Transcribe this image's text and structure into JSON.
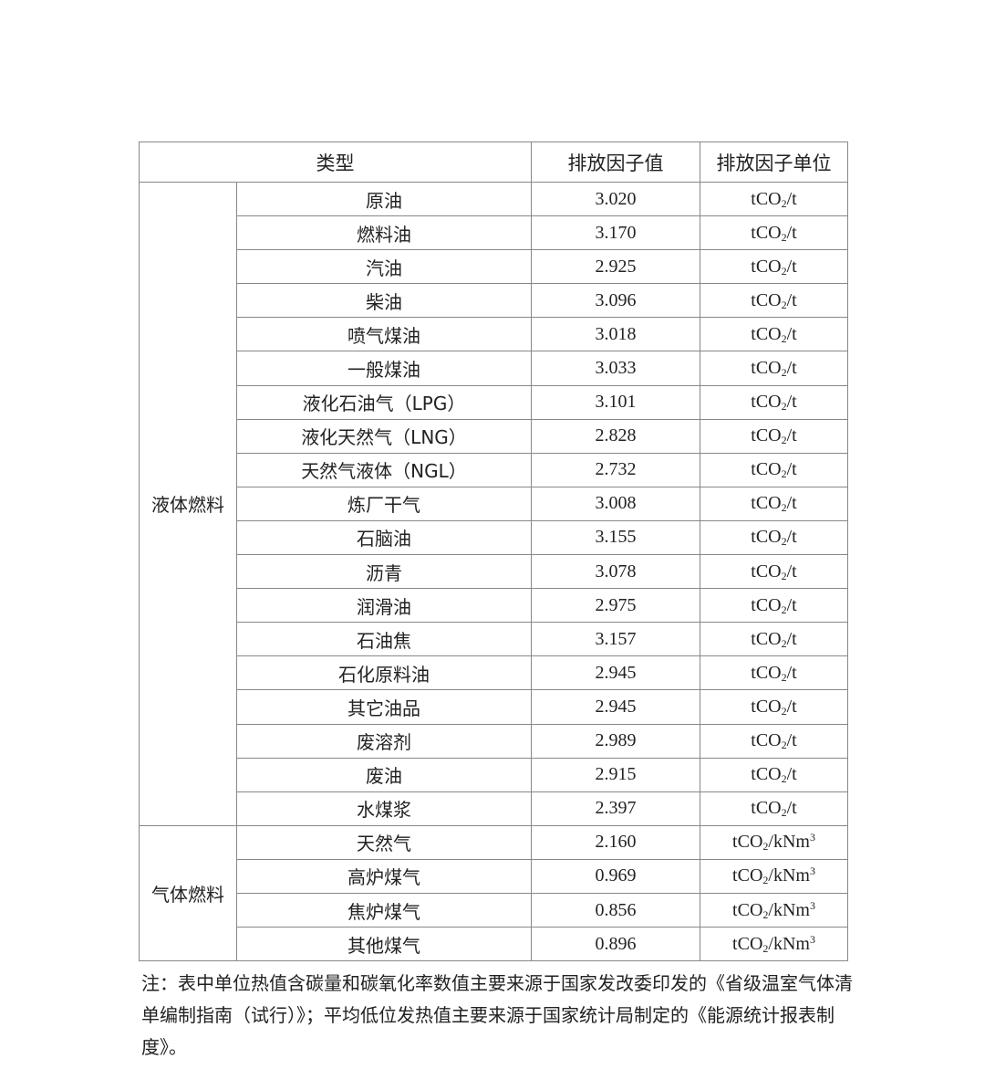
{
  "header": {
    "type": "类型",
    "value": "排放因子值",
    "unit": "排放因子单位"
  },
  "groups": [
    {
      "category": "液体燃料",
      "rows": [
        {
          "name": "原油",
          "value": "3.020",
          "unit": {
            "base": "tCO",
            "sub": "2",
            "rest": "/t",
            "sup": ""
          }
        },
        {
          "name": "燃料油",
          "value": "3.170",
          "unit": {
            "base": "tCO",
            "sub": "2",
            "rest": "/t",
            "sup": ""
          }
        },
        {
          "name": "汽油",
          "value": "2.925",
          "unit": {
            "base": "tCO",
            "sub": "2",
            "rest": "/t",
            "sup": ""
          }
        },
        {
          "name": "柴油",
          "value": "3.096",
          "unit": {
            "base": "tCO",
            "sub": "2",
            "rest": "/t",
            "sup": ""
          }
        },
        {
          "name": "喷气煤油",
          "value": "3.018",
          "unit": {
            "base": "tCO",
            "sub": "2",
            "rest": "/t",
            "sup": ""
          }
        },
        {
          "name": "一般煤油",
          "value": "3.033",
          "unit": {
            "base": "tCO",
            "sub": "2",
            "rest": "/t",
            "sup": ""
          }
        },
        {
          "name": "液化石油气（LPG）",
          "value": "3.101",
          "unit": {
            "base": "tCO",
            "sub": "2",
            "rest": "/t",
            "sup": ""
          }
        },
        {
          "name": "液化天然气（LNG）",
          "value": "2.828",
          "unit": {
            "base": "tCO",
            "sub": "2",
            "rest": "/t",
            "sup": ""
          }
        },
        {
          "name": "天然气液体（NGL）",
          "value": "2.732",
          "unit": {
            "base": "tCO",
            "sub": "2",
            "rest": "/t",
            "sup": ""
          }
        },
        {
          "name": "炼厂干气",
          "value": "3.008",
          "unit": {
            "base": "tCO",
            "sub": "2",
            "rest": "/t",
            "sup": ""
          }
        },
        {
          "name": "石脑油",
          "value": "3.155",
          "unit": {
            "base": "tCO",
            "sub": "2",
            "rest": "/t",
            "sup": ""
          }
        },
        {
          "name": "沥青",
          "value": "3.078",
          "unit": {
            "base": "tCO",
            "sub": "2",
            "rest": "/t",
            "sup": ""
          }
        },
        {
          "name": "润滑油",
          "value": "2.975",
          "unit": {
            "base": "tCO",
            "sub": "2",
            "rest": "/t",
            "sup": ""
          }
        },
        {
          "name": "石油焦",
          "value": "3.157",
          "unit": {
            "base": "tCO",
            "sub": "2",
            "rest": "/t",
            "sup": ""
          }
        },
        {
          "name": "石化原料油",
          "value": "2.945",
          "unit": {
            "base": "tCO",
            "sub": "2",
            "rest": "/t",
            "sup": ""
          }
        },
        {
          "name": "其它油品",
          "value": "2.945",
          "unit": {
            "base": "tCO",
            "sub": "2",
            "rest": "/t",
            "sup": ""
          }
        },
        {
          "name": "废溶剂",
          "value": "2.989",
          "unit": {
            "base": "tCO",
            "sub": "2",
            "rest": "/t",
            "sup": ""
          }
        },
        {
          "name": "废油",
          "value": "2.915",
          "unit": {
            "base": "tCO",
            "sub": "2",
            "rest": "/t",
            "sup": ""
          }
        },
        {
          "name": "水煤浆",
          "value": "2.397",
          "unit": {
            "base": "tCO",
            "sub": "2",
            "rest": "/t",
            "sup": ""
          }
        }
      ]
    },
    {
      "category": "气体燃料",
      "rows": [
        {
          "name": "天然气",
          "value": "2.160",
          "unit": {
            "base": "tCO",
            "sub": "2",
            "rest": "/kNm",
            "sup": "3"
          }
        },
        {
          "name": "高炉煤气",
          "value": "0.969",
          "unit": {
            "base": "tCO",
            "sub": "2",
            "rest": "/kNm",
            "sup": "3"
          }
        },
        {
          "name": "焦炉煤气",
          "value": "0.856",
          "unit": {
            "base": "tCO",
            "sub": "2",
            "rest": "/kNm",
            "sup": "3"
          }
        },
        {
          "name": "其他煤气",
          "value": "0.896",
          "unit": {
            "base": "tCO",
            "sub": "2",
            "rest": "/kNm",
            "sup": "3"
          }
        }
      ]
    }
  ],
  "note": "注：表中单位热值含碳量和碳氧化率数值主要来源于国家发改委印发的《省级温室气体清单编制指南（试行）》；平均低位发热值主要来源于国家统计局制定的《能源统计报表制度》。"
}
